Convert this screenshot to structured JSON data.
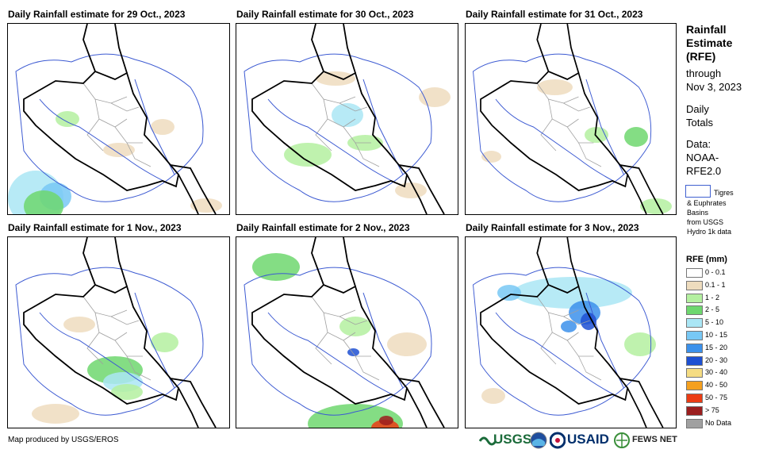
{
  "panels": [
    {
      "title": "Daily Rainfall estimate for 29 Oct., 2023"
    },
    {
      "title": "Daily Rainfall estimate for 30 Oct., 2023"
    },
    {
      "title": "Daily Rainfall estimate for 31 Oct., 2023"
    },
    {
      "title": "Daily Rainfall estimate for 1 Nov., 2023"
    },
    {
      "title": "Daily Rainfall estimate for 2 Nov., 2023"
    },
    {
      "title": "Daily Rainfall estimate for 3 Nov., 2023"
    }
  ],
  "sidebar": {
    "title_lines": [
      "Rainfall",
      "Estimate",
      "(RFE)"
    ],
    "through": "through",
    "date": "Nov 3, 2023",
    "daily": "Daily",
    "totals": "Totals",
    "data_label": "Data:",
    "data_source_1": "NOAA-",
    "data_source_2": "RFE2.0",
    "basin_label_1": "Tigres",
    "basin_label_2": "& Euphrates",
    "basin_label_3": "Basins",
    "basin_label_4": "from USGS",
    "basin_label_5": "Hydro 1k data",
    "legend_title": "RFE (mm)"
  },
  "legend": [
    {
      "label": "0 - 0.1",
      "color": "#ffffff"
    },
    {
      "label": "0.1 - 1",
      "color": "#eedcbe"
    },
    {
      "label": "1 - 2",
      "color": "#b4f0a0"
    },
    {
      "label": "2 - 5",
      "color": "#6ed76e"
    },
    {
      "label": "5 - 10",
      "color": "#aae6f5"
    },
    {
      "label": "10 - 15",
      "color": "#78c8f5"
    },
    {
      "label": "15 - 20",
      "color": "#3c91eb"
    },
    {
      "label": "20 - 30",
      "color": "#1e50d2"
    },
    {
      "label": "30 - 40",
      "color": "#f5dc82"
    },
    {
      "label": "40 - 50",
      "color": "#f5a01e"
    },
    {
      "label": "50 - 75",
      "color": "#eb3c14"
    },
    {
      "label": "> 75",
      "color": "#9b1e1e"
    },
    {
      "label": "No Data",
      "color": "#a0a0a0"
    }
  ],
  "footer": {
    "credit": "Map produced by USGS/EROS"
  },
  "logos": {
    "usgs": "USGS",
    "usaid": "USAID",
    "fewsnet": "FEWS NET"
  },
  "colors": {
    "border": "#000000",
    "river": "#3c5ad2",
    "admin": "#a0a0a0"
  }
}
